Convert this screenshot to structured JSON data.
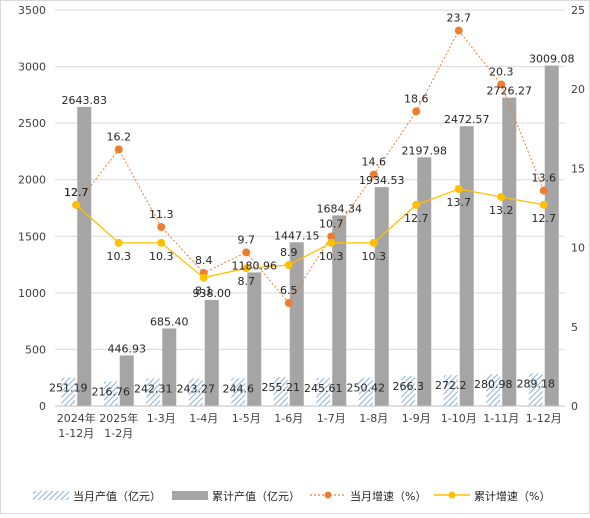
{
  "chart_data": {
    "type": "bar",
    "categories": [
      [
        "2024年",
        "1-12月"
      ],
      [
        "2025年",
        "1-2月"
      ],
      [
        "1-3月"
      ],
      [
        "1-4月"
      ],
      [
        "1-5月"
      ],
      [
        "1-6月"
      ],
      [
        "1-7月"
      ],
      [
        "1-8月"
      ],
      [
        "1-9月"
      ],
      [
        "1-10月"
      ],
      [
        "1-11月"
      ],
      [
        "1-12月"
      ]
    ],
    "series": [
      {
        "name": "当月产值（亿元）",
        "kind": "bar",
        "axis": "left",
        "pattern": "hatch",
        "color": "#8db0d4",
        "values": [
          251.19,
          216.76,
          242.31,
          243.27,
          244.6,
          255.21,
          245.61,
          250.42,
          266.3,
          272.2,
          280.98,
          289.18
        ],
        "labels": [
          "251.19",
          "216.76",
          "242.31",
          "243.27",
          "244.6",
          "255.21",
          "245.61",
          "250.42",
          "266.3",
          "272.2",
          "280.98",
          "289.18"
        ]
      },
      {
        "name": "累计产值（亿元）",
        "kind": "bar",
        "axis": "left",
        "color": "#a5a5a5",
        "values": [
          2643.83,
          446.93,
          685.4,
          938.0,
          1180.96,
          1447.15,
          1684.34,
          1934.53,
          2197.98,
          2472.57,
          2726.27,
          3009.08
        ],
        "labels": [
          "2643.83",
          "446.93",
          "685.40",
          "938.00",
          "1180.96",
          "1447.15",
          "1684.34",
          "1934.53",
          "2197.98",
          "2472.57",
          "2726.27",
          "3009.08"
        ]
      },
      {
        "name": "当月增速（%）",
        "kind": "line",
        "axis": "right",
        "dashed": true,
        "color": "#ed7d31",
        "values": [
          12.7,
          16.2,
          11.3,
          8.4,
          9.7,
          6.5,
          10.7,
          14.6,
          18.6,
          23.7,
          20.3,
          13.6
        ],
        "labels": [
          "12.7",
          "16.2",
          "11.3",
          "8.4",
          "9.7",
          "6.5",
          "10.7",
          "14.6",
          "18.6",
          "23.7",
          "20.3",
          "13.6"
        ]
      },
      {
        "name": "累计增速（%）",
        "kind": "line",
        "axis": "right",
        "color": "#ffc000",
        "values": [
          12.7,
          10.3,
          10.3,
          8.1,
          8.7,
          8.9,
          10.3,
          10.3,
          12.7,
          13.7,
          13.2,
          12.7
        ],
        "labels": [
          "12.7",
          "10.3",
          "10.3",
          "8.1",
          "8.7",
          "8.9",
          "10.3",
          "10.3",
          "12.7",
          "13.7",
          "13.2",
          "12.7"
        ]
      }
    ],
    "y_left": {
      "min": 0,
      "max": 3500,
      "ticks": [
        0,
        500,
        1000,
        1500,
        2000,
        2500,
        3000,
        3500
      ]
    },
    "y_right": {
      "min": 0,
      "max": 25,
      "ticks": [
        0,
        5,
        10,
        15,
        20,
        25
      ]
    },
    "grid": true,
    "legend_position": "bottom"
  }
}
